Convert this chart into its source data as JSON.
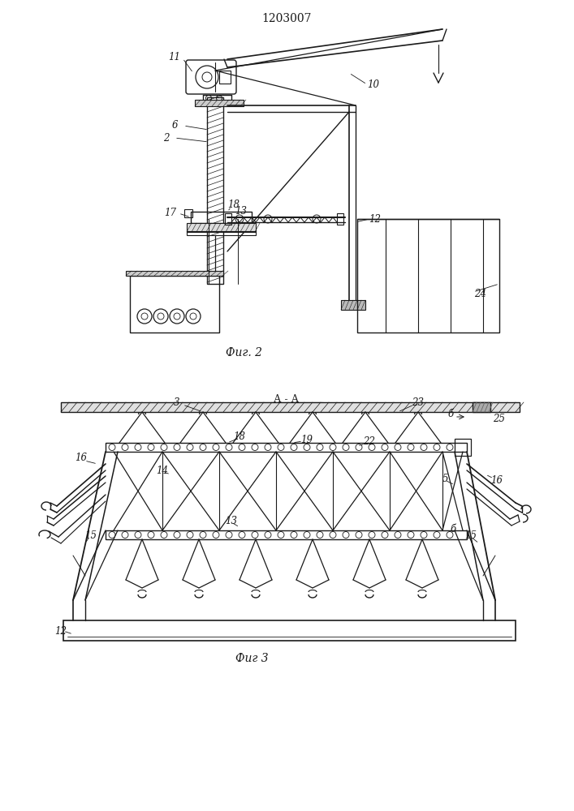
{
  "title": "1203007",
  "title_fontsize": 10,
  "fig2_label": "Фиг. 2",
  "fig3_label": "Фиг 3",
  "section_label": "А - А",
  "background_color": "#ffffff",
  "line_color": "#1a1a1a",
  "label_fontsize": 8.5
}
